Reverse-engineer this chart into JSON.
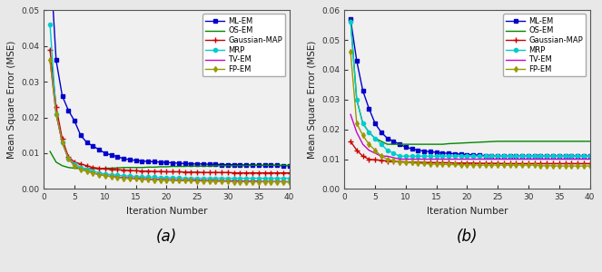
{
  "title_a": "(a)",
  "title_b": "(b)",
  "xlabel": "Iteration Number",
  "ylabel": "Mean Square Error (MSE)",
  "ylim_a": [
    0,
    0.05
  ],
  "ylim_b": [
    0,
    0.06
  ],
  "legend_labels": [
    "ML-EM",
    "OS-EM",
    "Gaussian-MAP",
    "MRP",
    "TV-EM",
    "FP-EM"
  ],
  "colors": [
    "#0000cc",
    "#008800",
    "#cc0000",
    "#00cccc",
    "#cc00cc",
    "#999900"
  ],
  "markers": [
    "s",
    null,
    "+",
    "o",
    null,
    "d"
  ],
  "markersizes": [
    3,
    0,
    4,
    3,
    0,
    3
  ],
  "linewidths": [
    1.0,
    1.0,
    1.0,
    1.0,
    1.0,
    1.0
  ],
  "series_a": {
    "ML_EM": [
      0.065,
      0.036,
      0.026,
      0.022,
      0.019,
      0.015,
      0.013,
      0.012,
      0.011,
      0.01,
      0.0095,
      0.009,
      0.0085,
      0.0082,
      0.008,
      0.0078,
      0.0077,
      0.0076,
      0.0075,
      0.0074,
      0.0073,
      0.0072,
      0.0071,
      0.007,
      0.007,
      0.007,
      0.0069,
      0.0069,
      0.0068,
      0.0068,
      0.0068,
      0.0067,
      0.0067,
      0.0067,
      0.0066,
      0.0066,
      0.0066,
      0.0066,
      0.0065,
      0.0065
    ],
    "OS_EM": [
      0.0105,
      0.0075,
      0.0065,
      0.006,
      0.0058,
      0.0057,
      0.0057,
      0.0057,
      0.0057,
      0.0058,
      0.0058,
      0.0059,
      0.006,
      0.006,
      0.006,
      0.006,
      0.0061,
      0.0061,
      0.0062,
      0.0062,
      0.0063,
      0.0063,
      0.0063,
      0.0064,
      0.0064,
      0.0064,
      0.0064,
      0.0065,
      0.0065,
      0.0065,
      0.0065,
      0.0065,
      0.0065,
      0.0066,
      0.0066,
      0.0066,
      0.0066,
      0.0066,
      0.0066,
      0.0066
    ],
    "Gaussian_MAP": [
      0.039,
      0.023,
      0.014,
      0.009,
      0.0075,
      0.007,
      0.0065,
      0.006,
      0.0058,
      0.0056,
      0.0055,
      0.0054,
      0.0053,
      0.0052,
      0.0051,
      0.005,
      0.005,
      0.0049,
      0.0049,
      0.0048,
      0.0048,
      0.0048,
      0.0047,
      0.0047,
      0.0047,
      0.0046,
      0.0046,
      0.0046,
      0.0046,
      0.0046,
      0.0045,
      0.0045,
      0.0045,
      0.0045,
      0.0045,
      0.0045,
      0.0045,
      0.0045,
      0.0045,
      0.0045
    ],
    "MRP": [
      0.046,
      0.021,
      0.013,
      0.0085,
      0.007,
      0.006,
      0.0055,
      0.005,
      0.0045,
      0.0042,
      0.004,
      0.0038,
      0.0037,
      0.0036,
      0.0035,
      0.0034,
      0.0033,
      0.0033,
      0.0032,
      0.0032,
      0.0031,
      0.0031,
      0.003,
      0.003,
      0.003,
      0.003,
      0.003,
      0.003,
      0.003,
      0.003,
      0.003,
      0.003,
      0.003,
      0.003,
      0.003,
      0.003,
      0.003,
      0.003,
      0.003,
      0.003
    ],
    "TV_EM": [
      0.036,
      0.021,
      0.013,
      0.0085,
      0.0065,
      0.0055,
      0.005,
      0.0045,
      0.004,
      0.0037,
      0.0035,
      0.0033,
      0.0032,
      0.0031,
      0.003,
      0.0029,
      0.0028,
      0.0027,
      0.0027,
      0.0026,
      0.0026,
      0.0025,
      0.0025,
      0.0025,
      0.0025,
      0.0024,
      0.0024,
      0.0024,
      0.0023,
      0.0023,
      0.0023,
      0.0022,
      0.0022,
      0.0022,
      0.0022,
      0.0021,
      0.0021,
      0.0021,
      0.0021,
      0.002
    ],
    "FP_EM": [
      0.036,
      0.021,
      0.013,
      0.0085,
      0.0065,
      0.0055,
      0.005,
      0.0045,
      0.004,
      0.0037,
      0.0034,
      0.0032,
      0.003,
      0.0029,
      0.0028,
      0.0027,
      0.0026,
      0.0025,
      0.0025,
      0.0024,
      0.0024,
      0.0023,
      0.0023,
      0.0023,
      0.0022,
      0.0022,
      0.0022,
      0.0021,
      0.0021,
      0.0021,
      0.002,
      0.002,
      0.002,
      0.002,
      0.002,
      0.002,
      0.002,
      0.002,
      0.002,
      0.0019
    ]
  },
  "series_b": {
    "ML_EM": [
      0.057,
      0.043,
      0.033,
      0.027,
      0.022,
      0.019,
      0.017,
      0.016,
      0.015,
      0.014,
      0.0135,
      0.013,
      0.0127,
      0.0125,
      0.0123,
      0.012,
      0.012,
      0.0118,
      0.0117,
      0.0115,
      0.0115,
      0.0113,
      0.0112,
      0.011,
      0.011,
      0.011,
      0.011,
      0.011,
      0.011,
      0.011,
      0.011,
      0.011,
      0.011,
      0.011,
      0.011,
      0.011,
      0.011,
      0.011,
      0.011,
      0.011
    ],
    "OS_EM": [
      0.057,
      0.03,
      0.022,
      0.019,
      0.017,
      0.016,
      0.015,
      0.015,
      0.015,
      0.015,
      0.015,
      0.015,
      0.015,
      0.015,
      0.015,
      0.015,
      0.0152,
      0.0153,
      0.0154,
      0.0155,
      0.0156,
      0.0157,
      0.0158,
      0.0159,
      0.016,
      0.016,
      0.016,
      0.016,
      0.016,
      0.016,
      0.016,
      0.016,
      0.016,
      0.016,
      0.016,
      0.016,
      0.016,
      0.016,
      0.016,
      0.016
    ],
    "Gaussian_MAP": [
      0.016,
      0.013,
      0.011,
      0.01,
      0.0098,
      0.0096,
      0.0094,
      0.0093,
      0.0092,
      0.0091,
      0.009,
      0.009,
      0.0089,
      0.0089,
      0.0088,
      0.0088,
      0.0088,
      0.0087,
      0.0087,
      0.0087,
      0.0087,
      0.0086,
      0.0086,
      0.0086,
      0.0086,
      0.0085,
      0.0085,
      0.0085,
      0.0085,
      0.0085,
      0.0085,
      0.0085,
      0.0085,
      0.0085,
      0.0085,
      0.0085,
      0.0085,
      0.0085,
      0.0085,
      0.0085
    ],
    "MRP": [
      0.056,
      0.03,
      0.022,
      0.019,
      0.017,
      0.015,
      0.013,
      0.012,
      0.011,
      0.011,
      0.011,
      0.011,
      0.011,
      0.011,
      0.011,
      0.011,
      0.011,
      0.011,
      0.011,
      0.011,
      0.011,
      0.011,
      0.011,
      0.011,
      0.011,
      0.011,
      0.011,
      0.011,
      0.011,
      0.011,
      0.011,
      0.011,
      0.011,
      0.011,
      0.011,
      0.011,
      0.011,
      0.011,
      0.011,
      0.011
    ],
    "TV_EM": [
      0.025,
      0.019,
      0.015,
      0.013,
      0.012,
      0.011,
      0.011,
      0.0105,
      0.01,
      0.01,
      0.01,
      0.01,
      0.01,
      0.01,
      0.01,
      0.01,
      0.01,
      0.01,
      0.01,
      0.01,
      0.01,
      0.01,
      0.01,
      0.01,
      0.01,
      0.01,
      0.01,
      0.01,
      0.01,
      0.01,
      0.01,
      0.01,
      0.01,
      0.01,
      0.01,
      0.01,
      0.01,
      0.01,
      0.01,
      0.01
    ],
    "FP_EM": [
      0.046,
      0.022,
      0.018,
      0.015,
      0.013,
      0.011,
      0.01,
      0.0095,
      0.009,
      0.009,
      0.0088,
      0.0086,
      0.0085,
      0.0084,
      0.0083,
      0.0083,
      0.0082,
      0.0082,
      0.0081,
      0.0081,
      0.0081,
      0.008,
      0.008,
      0.008,
      0.008,
      0.008,
      0.008,
      0.008,
      0.008,
      0.008,
      0.008,
      0.0078,
      0.0078,
      0.0078,
      0.0077,
      0.0077,
      0.0077,
      0.0077,
      0.0077,
      0.0077
    ]
  },
  "bg_color": "#f0f0f0",
  "fig_bg": "#e8e8e8"
}
